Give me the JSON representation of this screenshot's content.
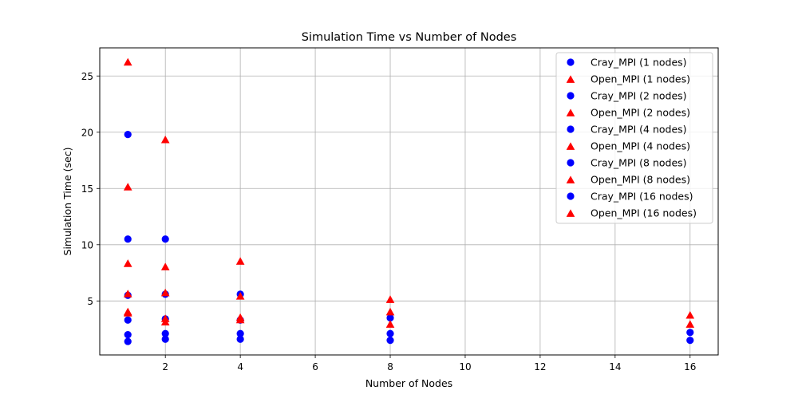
{
  "chart_data": {
    "type": "scatter",
    "title": "Simulation Time vs Number of Nodes",
    "xlabel": "Number of Nodes",
    "ylabel": "Simulation Time (sec)",
    "xlim": [
      0.25,
      16.75
    ],
    "ylim": [
      0.2,
      27.5
    ],
    "xticks": [
      2,
      4,
      6,
      8,
      10,
      12,
      14,
      16
    ],
    "yticks": [
      5,
      10,
      15,
      20,
      25
    ],
    "grid": true,
    "legend_position": "top-right",
    "colors": {
      "Cray_MPI": "#0000ff",
      "Open_MPI": "#ff0000"
    },
    "series": [
      {
        "name": "Cray_MPI (1 nodes)",
        "marker": "circle",
        "color": "#0000ff",
        "points": [
          [
            1,
            19.8
          ],
          [
            1,
            10.5
          ],
          [
            1,
            5.5
          ],
          [
            1,
            3.3
          ],
          [
            1,
            2.0
          ],
          [
            1,
            1.4
          ]
        ]
      },
      {
        "name": "Open_MPI (1 nodes)",
        "marker": "triangle",
        "color": "#ff0000",
        "points": [
          [
            1,
            26.2
          ],
          [
            1,
            15.1
          ],
          [
            1,
            8.3
          ],
          [
            1,
            5.6
          ],
          [
            1,
            4.0
          ],
          [
            1,
            3.9
          ]
        ]
      },
      {
        "name": "Cray_MPI (2 nodes)",
        "marker": "circle",
        "color": "#0000ff",
        "points": [
          [
            2,
            10.5
          ],
          [
            2,
            5.6
          ],
          [
            2,
            3.4
          ],
          [
            2,
            2.1
          ],
          [
            2,
            1.6
          ]
        ]
      },
      {
        "name": "Open_MPI (2 nodes)",
        "marker": "triangle",
        "color": "#ff0000",
        "points": [
          [
            2,
            19.3
          ],
          [
            2,
            8.0
          ],
          [
            2,
            5.7
          ],
          [
            2,
            3.4
          ],
          [
            2,
            3.1
          ]
        ]
      },
      {
        "name": "Cray_MPI (4 nodes)",
        "marker": "circle",
        "color": "#0000ff",
        "points": [
          [
            4,
            5.6
          ],
          [
            4,
            3.3
          ],
          [
            4,
            2.1
          ],
          [
            4,
            1.6
          ]
        ]
      },
      {
        "name": "Open_MPI (4 nodes)",
        "marker": "triangle",
        "color": "#ff0000",
        "points": [
          [
            4,
            8.5
          ],
          [
            4,
            5.4
          ],
          [
            4,
            3.5
          ],
          [
            4,
            3.3
          ]
        ]
      },
      {
        "name": "Cray_MPI (8 nodes)",
        "marker": "circle",
        "color": "#0000ff",
        "points": [
          [
            8,
            3.5
          ],
          [
            8,
            2.1
          ],
          [
            8,
            1.5
          ]
        ]
      },
      {
        "name": "Open_MPI (8 nodes)",
        "marker": "triangle",
        "color": "#ff0000",
        "points": [
          [
            8,
            5.1
          ],
          [
            8,
            4.0
          ],
          [
            8,
            2.9
          ]
        ]
      },
      {
        "name": "Cray_MPI (16 nodes)",
        "marker": "circle",
        "color": "#0000ff",
        "points": [
          [
            16,
            2.2
          ],
          [
            16,
            1.5
          ]
        ]
      },
      {
        "name": "Open_MPI (16 nodes)",
        "marker": "triangle",
        "color": "#ff0000",
        "points": [
          [
            16,
            3.7
          ],
          [
            16,
            2.9
          ]
        ]
      }
    ]
  }
}
